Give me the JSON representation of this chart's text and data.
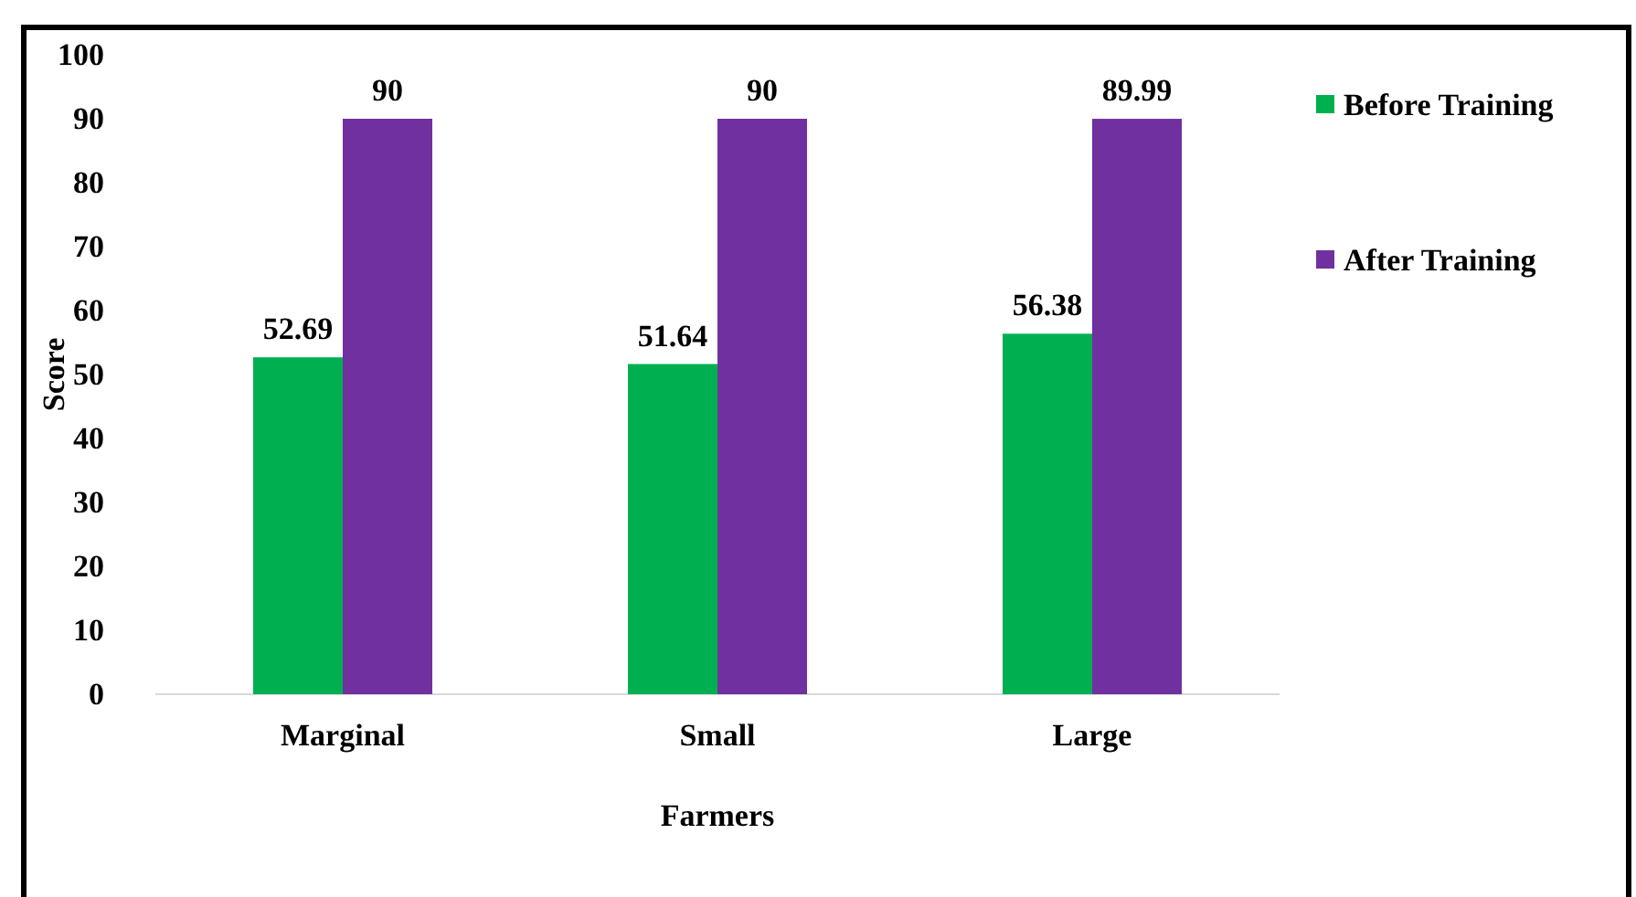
{
  "chart_data": {
    "type": "bar",
    "xlabel": "Farmers",
    "ylabel": "Score",
    "categories": [
      "Marginal",
      "Small",
      "Large"
    ],
    "series": [
      {
        "name": "Before Training",
        "color": "#00b050",
        "values": [
          52.69,
          51.64,
          56.38
        ]
      },
      {
        "name": "After Training",
        "color": "#7030a0",
        "values": [
          90,
          90,
          89.99
        ]
      }
    ],
    "ylim": [
      0,
      100
    ],
    "yticks": [
      0,
      10,
      20,
      30,
      40,
      50,
      60,
      70,
      80,
      90,
      100
    ],
    "grid": false,
    "legend": "right",
    "data_labels": true
  }
}
